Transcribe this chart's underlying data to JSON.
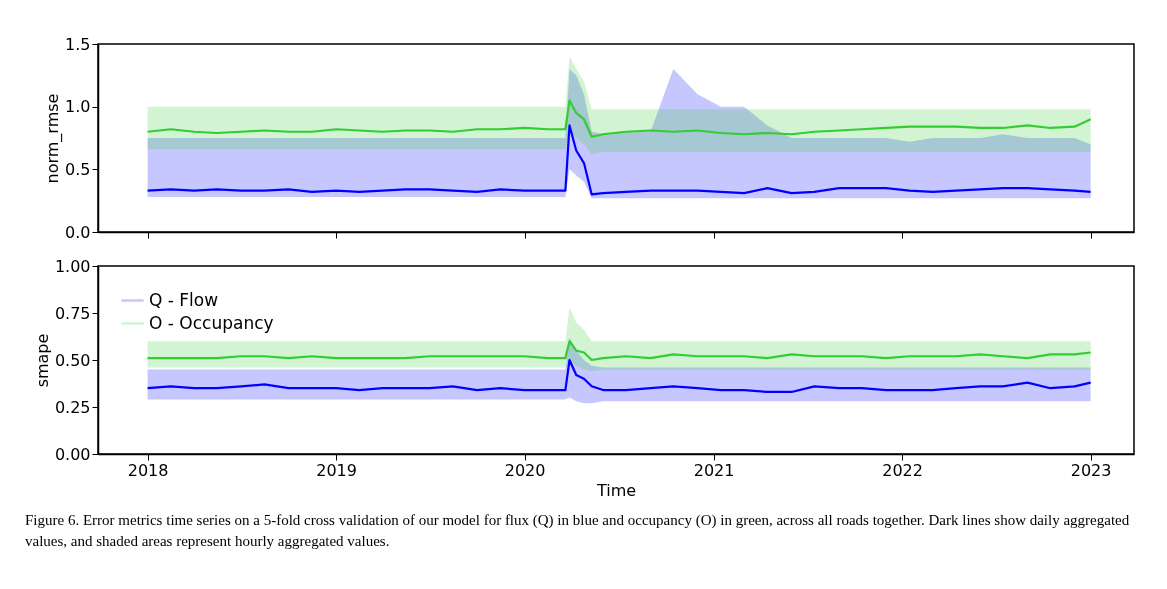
{
  "chart_data": [
    {
      "type": "line",
      "ylabel": "norm_rmse",
      "xlim": [
        "2017-09-27",
        "2023-03-26"
      ],
      "ylim": [
        0,
        1.5
      ],
      "xticks": [
        "2018",
        "2019",
        "2020",
        "2021",
        "2022",
        "2023"
      ],
      "yticks": [
        {
          "value": 0,
          "label": "0.0"
        },
        {
          "value": 0.5,
          "label": "0.5"
        },
        {
          "value": 1,
          "label": "1.0"
        },
        {
          "value": 1.5,
          "label": "1.5"
        }
      ],
      "tick_labels": "y",
      "x": [
        "2018-01-01",
        "2018-02-15",
        "2018-04-01",
        "2018-05-15",
        "2018-07-01",
        "2018-08-15",
        "2018-10-01",
        "2018-11-15",
        "2019-01-01",
        "2019-02-15",
        "2019-04-01",
        "2019-05-15",
        "2019-07-01",
        "2019-08-15",
        "2019-10-01",
        "2019-11-15",
        "2020-01-01",
        "2020-02-15",
        "2020-03-20",
        "2020-03-28",
        "2020-04-10",
        "2020-04-25",
        "2020-05-10",
        "2020-06-01",
        "2020-07-15",
        "2020-09-01",
        "2020-10-15",
        "2020-12-01",
        "2021-01-15",
        "2021-03-01",
        "2021-04-15",
        "2021-06-01",
        "2021-07-15",
        "2021-09-01",
        "2021-10-15",
        "2021-12-01",
        "2022-01-15",
        "2022-03-01",
        "2022-04-15",
        "2022-06-01",
        "2022-07-15",
        "2022-09-01",
        "2022-10-15",
        "2022-12-01",
        "2023-01-01"
      ],
      "series": [
        {
          "color": "#0000ff",
          "values": [
            0.33,
            0.34,
            0.33,
            0.34,
            0.33,
            0.33,
            0.34,
            0.32,
            0.33,
            0.32,
            0.33,
            0.34,
            0.34,
            0.33,
            0.32,
            0.34,
            0.33,
            0.33,
            0.33,
            0.85,
            0.65,
            0.55,
            0.3,
            0.31,
            0.32,
            0.33,
            0.33,
            0.33,
            0.32,
            0.31,
            0.35,
            0.31,
            0.32,
            0.35,
            0.35,
            0.35,
            0.33,
            0.32,
            0.33,
            0.34,
            0.35,
            0.35,
            0.34,
            0.33,
            0.32
          ],
          "lower": [
            0.28,
            0.28,
            0.28,
            0.28,
            0.28,
            0.28,
            0.28,
            0.28,
            0.28,
            0.28,
            0.28,
            0.28,
            0.28,
            0.28,
            0.28,
            0.28,
            0.28,
            0.28,
            0.28,
            0.5,
            0.45,
            0.4,
            0.27,
            0.27,
            0.27,
            0.27,
            0.27,
            0.27,
            0.27,
            0.27,
            0.27,
            0.27,
            0.27,
            0.27,
            0.27,
            0.27,
            0.27,
            0.27,
            0.27,
            0.27,
            0.27,
            0.27,
            0.27,
            0.27,
            0.27
          ],
          "upper": [
            0.75,
            0.75,
            0.75,
            0.75,
            0.75,
            0.75,
            0.75,
            0.75,
            0.75,
            0.75,
            0.75,
            0.75,
            0.75,
            0.75,
            0.75,
            0.75,
            0.75,
            0.75,
            0.75,
            1.3,
            1.25,
            1.1,
            0.8,
            0.78,
            0.8,
            0.8,
            1.3,
            1.1,
            1.0,
            1.0,
            0.85,
            0.75,
            0.75,
            0.75,
            0.75,
            0.75,
            0.72,
            0.75,
            0.75,
            0.75,
            0.78,
            0.75,
            0.75,
            0.75,
            0.7
          ]
        },
        {
          "color": "#33cc33",
          "values": [
            0.8,
            0.82,
            0.8,
            0.79,
            0.8,
            0.81,
            0.8,
            0.8,
            0.82,
            0.81,
            0.8,
            0.81,
            0.81,
            0.8,
            0.82,
            0.82,
            0.83,
            0.82,
            0.82,
            1.05,
            0.95,
            0.9,
            0.76,
            0.78,
            0.8,
            0.81,
            0.8,
            0.81,
            0.79,
            0.78,
            0.79,
            0.78,
            0.8,
            0.81,
            0.82,
            0.83,
            0.84,
            0.84,
            0.84,
            0.83,
            0.83,
            0.85,
            0.83,
            0.84,
            0.9
          ],
          "lower": [
            0.66,
            0.66,
            0.66,
            0.66,
            0.66,
            0.66,
            0.66,
            0.66,
            0.66,
            0.66,
            0.66,
            0.66,
            0.66,
            0.66,
            0.66,
            0.66,
            0.66,
            0.66,
            0.66,
            0.8,
            0.75,
            0.7,
            0.62,
            0.64,
            0.64,
            0.64,
            0.64,
            0.64,
            0.64,
            0.64,
            0.64,
            0.64,
            0.64,
            0.64,
            0.64,
            0.64,
            0.64,
            0.64,
            0.64,
            0.64,
            0.64,
            0.64,
            0.64,
            0.64,
            0.64
          ],
          "upper": [
            1.0,
            1.0,
            1.0,
            1.0,
            1.0,
            1.0,
            1.0,
            1.0,
            1.0,
            1.0,
            1.0,
            1.0,
            1.0,
            1.0,
            1.0,
            1.0,
            1.0,
            1.0,
            1.0,
            1.4,
            1.3,
            1.2,
            0.98,
            0.98,
            0.98,
            0.98,
            0.98,
            0.98,
            0.98,
            0.98,
            0.98,
            0.98,
            0.98,
            0.98,
            0.98,
            0.98,
            0.98,
            0.98,
            0.98,
            0.98,
            0.98,
            0.98,
            0.98,
            0.98,
            0.98
          ]
        }
      ]
    },
    {
      "type": "line",
      "xlabel": "Time",
      "ylabel": "smape",
      "xlim": [
        "2017-09-27",
        "2023-03-26"
      ],
      "ylim": [
        0,
        1
      ],
      "xticks": [
        "2018",
        "2019",
        "2020",
        "2021",
        "2022",
        "2023"
      ],
      "yticks": [
        {
          "value": 0,
          "label": "0.00"
        },
        {
          "value": 0.25,
          "label": "0.25"
        },
        {
          "value": 0.5,
          "label": "0.50"
        },
        {
          "value": 0.75,
          "label": "0.75"
        },
        {
          "value": 1,
          "label": "1.00"
        }
      ],
      "legend": "top left",
      "annotations": [
        "Figure 6. Error metrics time series on a 5-fold cross validation of our model for flux (Q) in blue and occupancy (O) in green, across all roads together. Dark lines show daily aggregated values, and shaded areas represent hourly aggregated values."
      ],
      "x": [
        "2018-01-01",
        "2018-02-15",
        "2018-04-01",
        "2018-05-15",
        "2018-07-01",
        "2018-08-15",
        "2018-10-01",
        "2018-11-15",
        "2019-01-01",
        "2019-02-15",
        "2019-04-01",
        "2019-05-15",
        "2019-07-01",
        "2019-08-15",
        "2019-10-01",
        "2019-11-15",
        "2020-01-01",
        "2020-02-15",
        "2020-03-20",
        "2020-03-28",
        "2020-04-10",
        "2020-04-25",
        "2020-05-10",
        "2020-06-01",
        "2020-07-15",
        "2020-09-01",
        "2020-10-15",
        "2020-12-01",
        "2021-01-15",
        "2021-03-01",
        "2021-04-15",
        "2021-06-01",
        "2021-07-15",
        "2021-09-01",
        "2021-10-15",
        "2021-12-01",
        "2022-01-15",
        "2022-03-01",
        "2022-04-15",
        "2022-06-01",
        "2022-07-15",
        "2022-09-01",
        "2022-10-15",
        "2022-12-01",
        "2023-01-01"
      ],
      "series": [
        {
          "name": "Q - Flow",
          "color": "#0000ff",
          "values": [
            0.35,
            0.36,
            0.35,
            0.35,
            0.36,
            0.37,
            0.35,
            0.35,
            0.35,
            0.34,
            0.35,
            0.35,
            0.35,
            0.36,
            0.34,
            0.35,
            0.34,
            0.34,
            0.34,
            0.5,
            0.42,
            0.4,
            0.36,
            0.34,
            0.34,
            0.35,
            0.36,
            0.35,
            0.34,
            0.34,
            0.33,
            0.33,
            0.36,
            0.35,
            0.35,
            0.34,
            0.34,
            0.34,
            0.35,
            0.36,
            0.36,
            0.38,
            0.35,
            0.36,
            0.38
          ],
          "lower": [
            0.29,
            0.29,
            0.29,
            0.29,
            0.29,
            0.29,
            0.29,
            0.29,
            0.29,
            0.29,
            0.29,
            0.29,
            0.29,
            0.29,
            0.29,
            0.29,
            0.29,
            0.29,
            0.29,
            0.3,
            0.28,
            0.27,
            0.27,
            0.28,
            0.28,
            0.28,
            0.28,
            0.28,
            0.28,
            0.28,
            0.28,
            0.28,
            0.28,
            0.28,
            0.28,
            0.28,
            0.28,
            0.28,
            0.28,
            0.28,
            0.28,
            0.28,
            0.28,
            0.28,
            0.28
          ],
          "upper": [
            0.45,
            0.45,
            0.45,
            0.45,
            0.45,
            0.45,
            0.45,
            0.45,
            0.45,
            0.45,
            0.45,
            0.45,
            0.45,
            0.45,
            0.45,
            0.45,
            0.45,
            0.45,
            0.45,
            0.62,
            0.55,
            0.5,
            0.47,
            0.46,
            0.46,
            0.46,
            0.46,
            0.46,
            0.46,
            0.46,
            0.46,
            0.46,
            0.46,
            0.46,
            0.46,
            0.46,
            0.46,
            0.46,
            0.46,
            0.46,
            0.46,
            0.46,
            0.46,
            0.46,
            0.46
          ]
        },
        {
          "name": "O - Occupancy",
          "color": "#33cc33",
          "values": [
            0.51,
            0.51,
            0.51,
            0.51,
            0.52,
            0.52,
            0.51,
            0.52,
            0.51,
            0.51,
            0.51,
            0.51,
            0.52,
            0.52,
            0.52,
            0.52,
            0.52,
            0.51,
            0.51,
            0.6,
            0.55,
            0.54,
            0.5,
            0.51,
            0.52,
            0.51,
            0.53,
            0.52,
            0.52,
            0.52,
            0.51,
            0.53,
            0.52,
            0.52,
            0.52,
            0.51,
            0.52,
            0.52,
            0.52,
            0.53,
            0.52,
            0.51,
            0.53,
            0.53,
            0.54
          ],
          "lower": [
            0.46,
            0.46,
            0.46,
            0.46,
            0.46,
            0.46,
            0.46,
            0.46,
            0.46,
            0.46,
            0.46,
            0.46,
            0.46,
            0.46,
            0.46,
            0.46,
            0.46,
            0.46,
            0.46,
            0.5,
            0.47,
            0.45,
            0.44,
            0.45,
            0.45,
            0.45,
            0.45,
            0.45,
            0.45,
            0.45,
            0.45,
            0.45,
            0.45,
            0.45,
            0.45,
            0.45,
            0.45,
            0.45,
            0.45,
            0.45,
            0.45,
            0.45,
            0.45,
            0.45,
            0.45
          ],
          "upper": [
            0.6,
            0.6,
            0.6,
            0.6,
            0.6,
            0.6,
            0.6,
            0.6,
            0.6,
            0.6,
            0.6,
            0.6,
            0.6,
            0.6,
            0.6,
            0.6,
            0.6,
            0.6,
            0.6,
            0.78,
            0.7,
            0.66,
            0.6,
            0.6,
            0.6,
            0.6,
            0.6,
            0.6,
            0.6,
            0.6,
            0.6,
            0.6,
            0.6,
            0.6,
            0.6,
            0.6,
            0.6,
            0.6,
            0.6,
            0.6,
            0.6,
            0.6,
            0.6,
            0.6,
            0.6
          ]
        }
      ]
    }
  ]
}
